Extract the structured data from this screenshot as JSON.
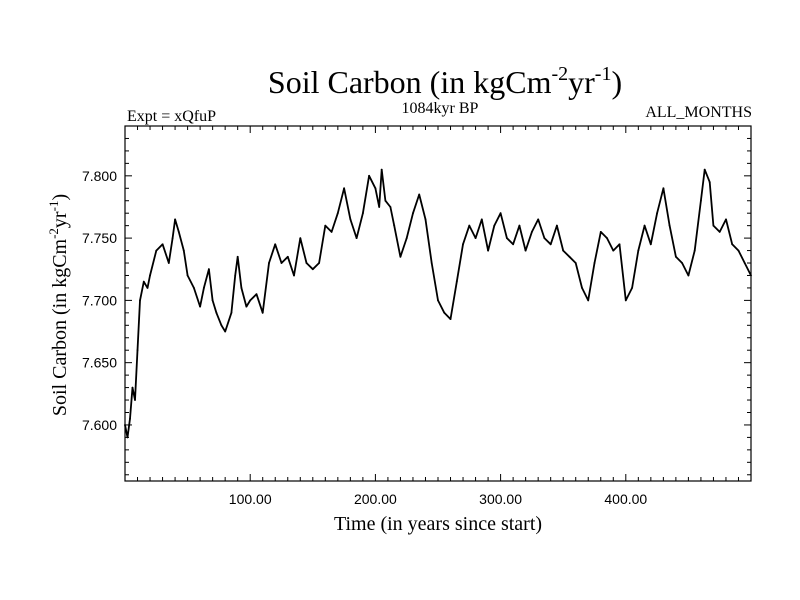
{
  "chart_data": {
    "type": "line",
    "title": {
      "main": "Soil Carbon (in kgCm",
      "sup1": "-2",
      "mid": "yr",
      "sup2": "-1",
      "end": ")"
    },
    "subtitle_left": "Expt = xQfuP",
    "subtitle_center": "1084kyr BP",
    "subtitle_right": "ALL_MONTHS",
    "xlabel": "Time (in years since start)",
    "ylabel": {
      "main": "Soil Carbon (in kgCm",
      "sup1": "-2",
      "mid": "yr",
      "sup2": "-1",
      "end": ")"
    },
    "xlim": [
      0,
      500
    ],
    "ylim": [
      7.555,
      7.84
    ],
    "xticks": [
      100,
      200,
      300,
      400
    ],
    "xtick_labels": [
      "100.00",
      "200.00",
      "300.00",
      "400.00"
    ],
    "yticks": [
      7.6,
      7.65,
      7.7,
      7.75,
      7.8
    ],
    "ytick_labels": [
      "7.600",
      "7.650",
      "7.700",
      "7.750",
      "7.800"
    ],
    "series": [
      {
        "name": "Soil Carbon",
        "x": [
          0,
          2,
          4,
          6,
          8,
          10,
          12,
          15,
          18,
          20,
          25,
          30,
          35,
          38,
          40,
          43,
          47,
          50,
          55,
          60,
          63,
          67,
          70,
          73,
          77,
          80,
          85,
          88,
          90,
          93,
          97,
          100,
          105,
          110,
          115,
          120,
          125,
          130,
          135,
          140,
          145,
          150,
          155,
          160,
          165,
          170,
          175,
          180,
          185,
          190,
          195,
          200,
          203,
          205,
          208,
          212,
          215,
          220,
          225,
          230,
          235,
          240,
          245,
          250,
          255,
          260,
          265,
          270,
          275,
          280,
          285,
          290,
          295,
          300,
          305,
          310,
          315,
          320,
          325,
          330,
          335,
          340,
          345,
          350,
          355,
          360,
          365,
          370,
          375,
          380,
          385,
          390,
          395,
          400,
          405,
          410,
          415,
          420,
          425,
          430,
          435,
          440,
          445,
          450,
          455,
          460,
          463,
          467,
          470,
          475,
          480,
          485,
          490,
          495,
          500
        ],
        "y": [
          7.6,
          7.59,
          7.605,
          7.63,
          7.62,
          7.66,
          7.7,
          7.715,
          7.71,
          7.72,
          7.74,
          7.745,
          7.73,
          7.75,
          7.765,
          7.755,
          7.74,
          7.72,
          7.71,
          7.695,
          7.71,
          7.725,
          7.7,
          7.69,
          7.68,
          7.675,
          7.69,
          7.72,
          7.735,
          7.71,
          7.695,
          7.7,
          7.705,
          7.69,
          7.73,
          7.745,
          7.73,
          7.735,
          7.72,
          7.75,
          7.73,
          7.725,
          7.73,
          7.76,
          7.755,
          7.77,
          7.79,
          7.765,
          7.75,
          7.77,
          7.8,
          7.79,
          7.775,
          7.805,
          7.78,
          7.775,
          7.76,
          7.735,
          7.75,
          7.77,
          7.785,
          7.765,
          7.73,
          7.7,
          7.69,
          7.685,
          7.715,
          7.745,
          7.76,
          7.75,
          7.765,
          7.74,
          7.76,
          7.77,
          7.75,
          7.745,
          7.76,
          7.74,
          7.755,
          7.765,
          7.75,
          7.745,
          7.76,
          7.74,
          7.735,
          7.73,
          7.71,
          7.7,
          7.73,
          7.755,
          7.75,
          7.74,
          7.745,
          7.7,
          7.71,
          7.74,
          7.76,
          7.745,
          7.77,
          7.79,
          7.76,
          7.735,
          7.73,
          7.72,
          7.74,
          7.78,
          7.805,
          7.795,
          7.76,
          7.755,
          7.765,
          7.745,
          7.74,
          7.73,
          7.72
        ]
      }
    ]
  }
}
